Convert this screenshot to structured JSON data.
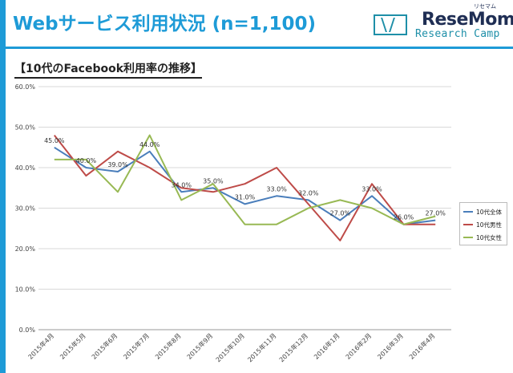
{
  "header": {
    "title": "Webサービス利用状況 (n=1,100)",
    "logo_brand": "ReseMom",
    "logo_ruby": "リセマム",
    "logo_name": "Research Camp"
  },
  "colors": {
    "accent": "#1E9BD7",
    "brand_dark": "#1F2E54",
    "brand_teal": "#1E8FA8"
  },
  "chart_data": {
    "type": "line",
    "title": "【10代のFacebook利用率の推移】",
    "xlabel": "",
    "ylabel": "",
    "categories": [
      "2015年4月",
      "2015年5月",
      "2015年6月",
      "2015年7月",
      "2015年8月",
      "2015年9月",
      "2015年10月",
      "2015年11月",
      "2015年12月",
      "2016年1月",
      "2016年2月",
      "2016年3月",
      "2016年4月"
    ],
    "ylim": [
      0,
      60
    ],
    "yticks": [
      "0.0%",
      "10.0%",
      "20.0%",
      "30.0%",
      "40.0%",
      "50.0%",
      "60.0%"
    ],
    "grid": true,
    "legend_position": "right",
    "series": [
      {
        "name": "10代全体",
        "color": "#4A7EBB",
        "values": [
          45,
          40,
          39,
          44,
          34,
          35,
          31,
          33,
          32,
          27,
          33,
          26,
          27
        ]
      },
      {
        "name": "10代男性",
        "color": "#BE4B48",
        "values": [
          48,
          38,
          44,
          40,
          35,
          34,
          36,
          40,
          31,
          22,
          36,
          26,
          26
        ]
      },
      {
        "name": "10代女性",
        "color": "#98B954",
        "values": [
          42,
          42,
          34,
          48,
          32,
          36,
          26,
          26,
          30,
          32,
          30,
          26,
          28
        ]
      }
    ],
    "data_labels": [
      "45.0%",
      "40.0%",
      "39.0%",
      "44.0%",
      "34.0%",
      "35.0%",
      "31.0%",
      "33.0%",
      "32.0%",
      "27.0%",
      "33.0%",
      "26.0%",
      "27.0%"
    ]
  }
}
